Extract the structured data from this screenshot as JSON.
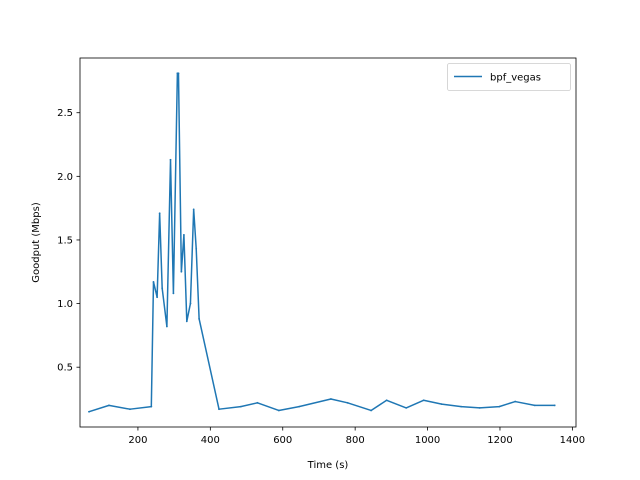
{
  "chart_data": {
    "type": "line",
    "xlabel": "Time (s)",
    "ylabel": "Goodput (Mbps)",
    "xlim": [
      40,
      1410
    ],
    "ylim": [
      0.03,
      2.93
    ],
    "xticks": [
      200,
      400,
      600,
      800,
      1000,
      1200,
      1400
    ],
    "yticks": [
      0.5,
      1.0,
      1.5,
      2.0,
      2.5
    ],
    "xtick_labels": [
      "200",
      "400",
      "600",
      "800",
      "1000",
      "1200",
      "1400"
    ],
    "ytick_labels": [
      "0.5",
      "1.0",
      "1.5",
      "2.0",
      "2.5"
    ],
    "grid": false,
    "legend_position": "top-right",
    "series": [
      {
        "name": "bpf_vegas",
        "color": "#1f77b4",
        "x": [
          65,
          120,
          178,
          237,
          243,
          253,
          260,
          267,
          280,
          290,
          298,
          309,
          312,
          320,
          327,
          335,
          345,
          354,
          361,
          369,
          424,
          484,
          530,
          589,
          645,
          733,
          779,
          844,
          887,
          941,
          989,
          1039,
          1093,
          1144,
          1198,
          1242,
          1296,
          1351
        ],
        "y": [
          0.15,
          0.2,
          0.17,
          0.19,
          1.17,
          1.05,
          1.71,
          1.12,
          0.82,
          2.13,
          1.08,
          2.81,
          2.81,
          1.25,
          1.54,
          0.86,
          1.0,
          1.74,
          1.43,
          0.88,
          0.17,
          0.19,
          0.22,
          0.16,
          0.19,
          0.25,
          0.22,
          0.16,
          0.24,
          0.18,
          0.24,
          0.21,
          0.19,
          0.18,
          0.19,
          0.23,
          0.2,
          0.2
        ]
      }
    ]
  }
}
